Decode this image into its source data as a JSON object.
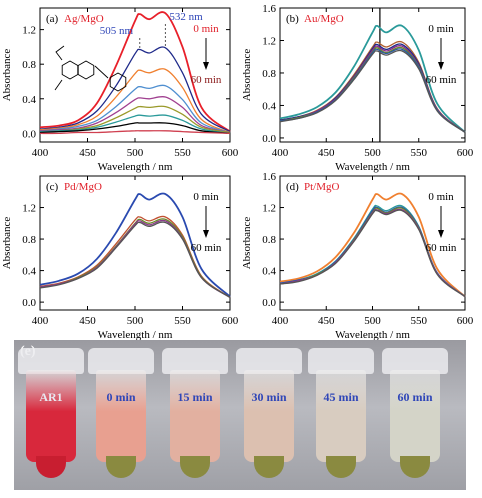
{
  "chart_data": [
    {
      "panel": "(a)",
      "type": "line",
      "sample": "Ag/MgO",
      "xlabel": "Wavelength / nm",
      "ylabel": "Absorbance",
      "xlim": [
        400,
        600
      ],
      "ylim": [
        -0.1,
        1.45
      ],
      "xticks": [
        400,
        450,
        500,
        550,
        600
      ],
      "yticks": [
        0.0,
        0.4,
        0.8,
        1.2
      ],
      "annotations": [
        "532 nm",
        "505 nm",
        "0 min",
        "60 min"
      ],
      "colors": [
        "#e8202a",
        "#1f2a8a",
        "#f08030",
        "#4f8fd0",
        "#a04090",
        "#9a9a2a",
        "#2a9a9a",
        "#000000",
        "#d04050"
      ],
      "x": [
        400,
        420,
        440,
        460,
        480,
        500,
        505,
        515,
        532,
        550,
        570,
        600
      ],
      "series": [
        {
          "values": [
            0.07,
            0.09,
            0.15,
            0.35,
            0.78,
            1.3,
            1.38,
            1.32,
            1.39,
            1.0,
            0.3,
            0.02
          ]
        },
        {
          "values": [
            0.05,
            0.07,
            0.12,
            0.26,
            0.55,
            0.92,
            0.97,
            0.93,
            0.99,
            0.7,
            0.22,
            0.02
          ]
        },
        {
          "values": [
            0.04,
            0.06,
            0.1,
            0.2,
            0.42,
            0.69,
            0.73,
            0.7,
            0.74,
            0.53,
            0.16,
            0.01
          ]
        },
        {
          "values": [
            0.03,
            0.05,
            0.08,
            0.15,
            0.31,
            0.51,
            0.54,
            0.52,
            0.55,
            0.39,
            0.12,
            0.01
          ]
        },
        {
          "values": [
            0.03,
            0.04,
            0.06,
            0.12,
            0.24,
            0.39,
            0.41,
            0.4,
            0.42,
            0.3,
            0.09,
            0.01
          ]
        },
        {
          "values": [
            0.02,
            0.03,
            0.05,
            0.09,
            0.18,
            0.29,
            0.31,
            0.3,
            0.31,
            0.22,
            0.07,
            0.01
          ]
        },
        {
          "values": [
            0.02,
            0.03,
            0.04,
            0.07,
            0.13,
            0.2,
            0.21,
            0.2,
            0.21,
            0.15,
            0.05,
            0.0
          ]
        },
        {
          "values": [
            0.01,
            0.02,
            0.03,
            0.05,
            0.08,
            0.12,
            0.12,
            0.12,
            0.12,
            0.09,
            0.03,
            0.0
          ]
        },
        {
          "values": [
            0.0,
            0.0,
            0.01,
            0.01,
            0.02,
            0.03,
            0.03,
            0.03,
            0.03,
            0.02,
            0.01,
            0.0
          ]
        }
      ]
    },
    {
      "panel": "(b)",
      "type": "line",
      "sample": "Au/MgO",
      "xlabel": "Wavelength / nm",
      "ylabel": "Absorbance",
      "xlim": [
        400,
        600
      ],
      "ylim": [
        -0.05,
        1.6
      ],
      "xticks": [
        400,
        450,
        500,
        550,
        600
      ],
      "yticks": [
        0.0,
        0.4,
        0.8,
        1.2,
        1.6
      ],
      "annotations": [
        "0 min",
        "60 min"
      ],
      "vline_x": 508,
      "colors": [
        "#2a9a9a",
        "#b06030",
        "#1f2a8a",
        "#8a2a8a",
        "#6a8a2a",
        "#2a5aa0",
        "#555555"
      ],
      "x": [
        400,
        420,
        440,
        460,
        480,
        500,
        505,
        515,
        532,
        550,
        570,
        600
      ],
      "series": [
        {
          "values": [
            0.24,
            0.29,
            0.38,
            0.56,
            0.88,
            1.3,
            1.38,
            1.3,
            1.38,
            1.08,
            0.42,
            0.07
          ]
        },
        {
          "values": [
            0.22,
            0.26,
            0.34,
            0.5,
            0.78,
            1.12,
            1.18,
            1.12,
            1.18,
            0.93,
            0.36,
            0.07
          ]
        },
        {
          "values": [
            0.22,
            0.26,
            0.33,
            0.49,
            0.76,
            1.1,
            1.15,
            1.09,
            1.15,
            0.91,
            0.35,
            0.07
          ]
        },
        {
          "values": [
            0.21,
            0.25,
            0.33,
            0.48,
            0.75,
            1.08,
            1.13,
            1.07,
            1.13,
            0.89,
            0.35,
            0.07
          ]
        },
        {
          "values": [
            0.21,
            0.25,
            0.32,
            0.47,
            0.74,
            1.06,
            1.11,
            1.05,
            1.11,
            0.88,
            0.34,
            0.07
          ]
        },
        {
          "values": [
            0.21,
            0.24,
            0.32,
            0.47,
            0.73,
            1.05,
            1.09,
            1.04,
            1.09,
            0.87,
            0.34,
            0.07
          ]
        },
        {
          "values": [
            0.2,
            0.24,
            0.31,
            0.46,
            0.72,
            1.03,
            1.07,
            1.02,
            1.07,
            0.85,
            0.33,
            0.07
          ]
        }
      ]
    },
    {
      "panel": "(c)",
      "type": "line",
      "sample": "Pd/MgO",
      "xlabel": "Wavelength / nm",
      "ylabel": "Absorbance",
      "xlim": [
        400,
        600
      ],
      "ylim": [
        -0.1,
        1.6
      ],
      "xticks": [
        400,
        450,
        500,
        550,
        600
      ],
      "yticks": [
        0.0,
        0.4,
        0.8,
        1.2
      ],
      "annotations": [
        "0 min",
        "60 min"
      ],
      "colors": [
        "#2a4ab0",
        "#c05030",
        "#6a8a2a",
        "#8a3a8a",
        "#555555"
      ],
      "x": [
        400,
        420,
        440,
        460,
        480,
        500,
        505,
        515,
        532,
        550,
        570,
        600
      ],
      "series": [
        {
          "values": [
            0.22,
            0.27,
            0.36,
            0.55,
            0.88,
            1.3,
            1.37,
            1.3,
            1.37,
            1.08,
            0.42,
            0.07
          ]
        },
        {
          "values": [
            0.2,
            0.24,
            0.32,
            0.47,
            0.74,
            1.04,
            1.08,
            1.03,
            1.08,
            0.85,
            0.33,
            0.06
          ]
        },
        {
          "values": [
            0.19,
            0.23,
            0.31,
            0.45,
            0.71,
            1.0,
            1.05,
            1.0,
            1.05,
            0.83,
            0.32,
            0.06
          ]
        },
        {
          "values": [
            0.19,
            0.23,
            0.3,
            0.44,
            0.7,
            0.99,
            1.03,
            0.98,
            1.03,
            0.81,
            0.31,
            0.06
          ]
        },
        {
          "values": [
            0.18,
            0.22,
            0.3,
            0.43,
            0.69,
            0.97,
            1.01,
            0.96,
            1.01,
            0.8,
            0.31,
            0.06
          ]
        }
      ]
    },
    {
      "panel": "(d)",
      "type": "line",
      "sample": "Pt/MgO",
      "xlabel": "Wavelength / nm",
      "ylabel": "Absorbance",
      "xlim": [
        400,
        600
      ],
      "ylim": [
        -0.1,
        1.6
      ],
      "xticks": [
        400,
        450,
        500,
        550,
        600
      ],
      "yticks": [
        0.0,
        0.4,
        0.8,
        1.2,
        1.6
      ],
      "annotations": [
        "0 min",
        "60 min"
      ],
      "colors": [
        "#f08030",
        "#2a9a9a",
        "#2a4ab0",
        "#6a8a2a",
        "#8a3a8a",
        "#555555"
      ],
      "x": [
        400,
        420,
        440,
        460,
        480,
        500,
        505,
        515,
        532,
        550,
        570,
        600
      ],
      "series": [
        {
          "values": [
            0.26,
            0.3,
            0.39,
            0.57,
            0.88,
            1.3,
            1.37,
            1.3,
            1.37,
            1.08,
            0.42,
            0.07
          ]
        },
        {
          "values": [
            0.24,
            0.28,
            0.36,
            0.52,
            0.81,
            1.18,
            1.22,
            1.16,
            1.22,
            0.96,
            0.37,
            0.07
          ]
        },
        {
          "values": [
            0.24,
            0.28,
            0.35,
            0.51,
            0.8,
            1.16,
            1.2,
            1.14,
            1.2,
            0.95,
            0.37,
            0.07
          ]
        },
        {
          "values": [
            0.23,
            0.27,
            0.35,
            0.5,
            0.79,
            1.14,
            1.19,
            1.13,
            1.19,
            0.94,
            0.36,
            0.07
          ]
        },
        {
          "values": [
            0.23,
            0.27,
            0.34,
            0.5,
            0.78,
            1.13,
            1.17,
            1.12,
            1.17,
            0.93,
            0.36,
            0.07
          ]
        },
        {
          "values": [
            0.23,
            0.26,
            0.34,
            0.49,
            0.77,
            1.12,
            1.16,
            1.11,
            1.16,
            0.92,
            0.35,
            0.07
          ]
        }
      ]
    }
  ],
  "photo": {
    "panel_label": "(e)",
    "tubes": [
      {
        "label": "AR1",
        "liquid": "#d8283c",
        "tip": "#c81e30"
      },
      {
        "label": "0 min",
        "liquid": "#e8a090",
        "tip": "#8a8a40"
      },
      {
        "label": "15 min",
        "liquid": "#e2b0a0",
        "tip": "#8a8a40"
      },
      {
        "label": "30 min",
        "liquid": "#dcc0b0",
        "tip": "#8a8a40"
      },
      {
        "label": "45 min",
        "liquid": "#d8ccc0",
        "tip": "#8a8a40"
      },
      {
        "label": "60 min",
        "liquid": "#d4d4c8",
        "tip": "#8a8a40"
      }
    ]
  }
}
